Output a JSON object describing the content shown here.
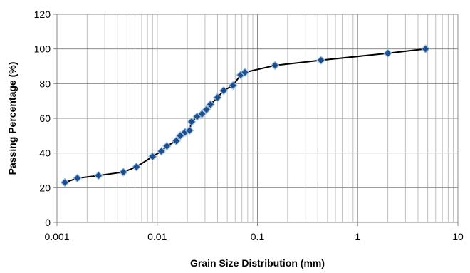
{
  "chart_data": {
    "type": "scatter",
    "title": "",
    "xlabel": "Grain Size Distribution (mm)",
    "ylabel": "Passing Percentage (%)",
    "x_scale": "log",
    "xlim": [
      0.001,
      10
    ],
    "ylim": [
      0,
      120
    ],
    "x_ticks": [
      0.001,
      0.01,
      0.1,
      1,
      10
    ],
    "x_tick_labels": [
      "0.001",
      "0.01",
      "0.1",
      "1",
      "10"
    ],
    "y_ticks": [
      0,
      20,
      40,
      60,
      80,
      100,
      120
    ],
    "y_tick_labels": [
      "0",
      "20",
      "40",
      "60",
      "80",
      "100",
      "120"
    ],
    "grid": {
      "major": true,
      "minor_x": true
    },
    "legend": "none",
    "colors": {
      "line": "#000000",
      "marker_fill": "#1f4e8c",
      "marker_edge": "#9dc3e6",
      "grid": "#bfbfbf"
    },
    "series": [
      {
        "marker": "diamond",
        "connected": true,
        "x": [
          0.0012,
          0.0016,
          0.0026,
          0.0046,
          0.0062,
          0.009,
          0.011,
          0.0125,
          0.0155,
          0.017,
          0.019,
          0.021,
          0.022,
          0.025,
          0.028,
          0.031,
          0.034,
          0.04,
          0.046,
          0.057,
          0.068,
          0.075,
          0.15,
          0.43,
          2.0,
          4.75
        ],
        "y": [
          23,
          25.5,
          27,
          29,
          32,
          38,
          41,
          44,
          47,
          50,
          52,
          53,
          58,
          61,
          62.5,
          65,
          68,
          72,
          76,
          79,
          85,
          86.5,
          90.5,
          93.5,
          97.5,
          100
        ]
      }
    ]
  }
}
